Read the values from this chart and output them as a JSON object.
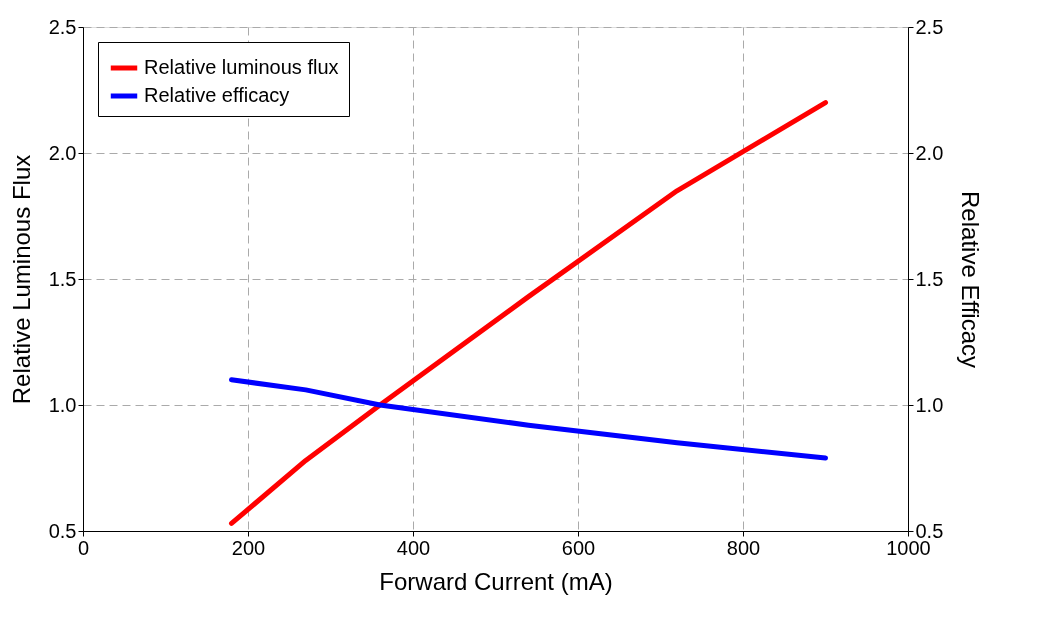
{
  "chart_data": {
    "type": "line",
    "xlabel": "Forward Current  (mA)",
    "ylabel": "Relative Luminous Flux",
    "y2label": "Relative Efficacy",
    "x": [
      180,
      270,
      360,
      540,
      720,
      900
    ],
    "series": [
      {
        "name": "Relative luminous flux",
        "color": "#ff0000",
        "values": [
          0.53,
          0.78,
          1.0,
          1.43,
          1.85,
          2.2
        ]
      },
      {
        "name": "Relative efficacy",
        "color": "#0000ff",
        "axis": "y2",
        "values": [
          1.1,
          1.06,
          1.0,
          0.92,
          0.85,
          0.79
        ]
      }
    ],
    "xlim": [
      0,
      1000
    ],
    "xticks": [
      0,
      200,
      400,
      600,
      800,
      1000
    ],
    "ylim": [
      0.5,
      2.5
    ],
    "yticks": [
      {
        "value": 0.5,
        "label": "0.5"
      },
      {
        "value": 1,
        "label": "1.0"
      },
      {
        "value": 1.5,
        "label": "1.5"
      },
      {
        "value": 2,
        "label": "2.0"
      },
      {
        "value": 2.5,
        "label": "2.5"
      }
    ],
    "y2lim": [
      0.5,
      2.5
    ],
    "y2ticks": [
      {
        "value": 0.5,
        "label": "0.5"
      },
      {
        "value": 1,
        "label": "1.0"
      },
      {
        "value": 1.5,
        "label": "1.5"
      },
      {
        "value": 2,
        "label": "2.0"
      },
      {
        "value": 2.5,
        "label": "2.5"
      }
    ],
    "grid": true,
    "legend": "top left",
    "marker": "none",
    "line_style": "solid"
  }
}
